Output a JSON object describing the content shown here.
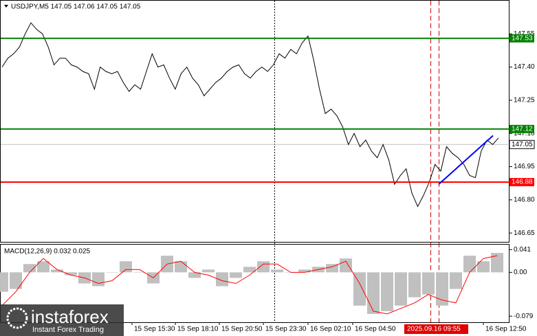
{
  "chart_data": [
    {
      "type": "line",
      "title": "USDJPY,M5  147.05 147.06 147.05 147.05",
      "color": "#000000",
      "values": [
        147.4,
        147.44,
        147.46,
        147.49,
        147.55,
        147.6,
        147.57,
        147.55,
        147.49,
        147.41,
        147.44,
        147.44,
        147.41,
        147.4,
        147.38,
        147.37,
        147.3,
        147.4,
        147.38,
        147.37,
        147.38,
        147.33,
        147.29,
        147.32,
        147.3,
        147.38,
        147.46,
        147.4,
        147.41,
        147.35,
        147.3,
        147.37,
        147.4,
        147.35,
        147.32,
        147.27,
        147.3,
        147.33,
        147.35,
        147.38,
        147.4,
        147.41,
        147.37,
        147.35,
        147.38,
        147.4,
        147.38,
        147.41,
        147.46,
        147.44,
        147.48,
        147.46,
        147.51,
        147.54,
        147.43,
        147.3,
        147.19,
        147.21,
        147.18,
        147.13,
        147.05,
        147.1,
        147.04,
        147.07,
        147.02,
        146.99,
        147.05,
        146.98,
        146.87,
        146.91,
        146.94,
        146.83,
        146.77,
        146.82,
        146.88,
        146.96,
        146.93,
        147.04,
        147.01,
        146.99,
        146.96,
        146.91,
        146.9,
        147.02,
        147.07,
        147.05,
        147.08
      ],
      "ylim": [
        146.61,
        147.7
      ],
      "yticks": [
        147.55,
        {
          "value": 147.4,
          "label": "147.40"
        },
        147.25,
        {
          "value": 147.1,
          "label": "147.10"
        },
        146.95,
        {
          "value": 146.8,
          "label": "146.80"
        },
        146.65
      ],
      "levels": [
        {
          "value": 147.53,
          "color": "#008000"
        },
        {
          "value": 147.12,
          "color": "#008000"
        },
        {
          "value": 146.88,
          "color": "#ff0000"
        }
      ],
      "current": {
        "value": 147.05,
        "color": "#c0c0c0"
      },
      "trendline": {
        "color": "#0000ff",
        "values": [
          146.87,
          147.09
        ]
      },
      "x_labels": [
        "15 Sep 15:30",
        "15 Sep 18:10",
        "15 Sep 20:50",
        "15 Sep 23:30",
        "16 Sep 02:10",
        "16 Sep 04:50",
        "16 Sep 12:50"
      ],
      "cursor_label": "2025.09.16 09:55"
    },
    {
      "type": "bar",
      "title": "MACD(12,26,9) 0.032 0.025",
      "color": "#c0c0c0",
      "values": [
        -0.035,
        -0.03,
        0.015,
        0.02,
        0.005,
        -0.005,
        -0.02,
        -0.025,
        0.0,
        0.02,
        0.0,
        -0.02,
        0.03,
        0.02,
        -0.01,
        0.005,
        -0.025,
        -0.01,
        0.01,
        0.02,
        0.005,
        0.0,
        0.005,
        0.01,
        0.015,
        0.025,
        -0.06,
        -0.075,
        -0.07,
        -0.06,
        -0.045,
        -0.04,
        -0.06,
        -0.03,
        0.03,
        0.02,
        0.035
      ],
      "signal": {
        "color": "#ff0000",
        "values": [
          -0.06,
          -0.035,
          0.0,
          0.025,
          0.005,
          -0.005,
          -0.01,
          -0.02,
          -0.015,
          0.005,
          0.005,
          -0.01,
          0.015,
          0.02,
          0.0,
          -0.005,
          -0.015,
          -0.02,
          -0.005,
          0.015,
          0.015,
          0.0,
          0.0,
          0.005,
          0.01,
          0.02,
          -0.02,
          -0.07,
          -0.075,
          -0.065,
          -0.055,
          -0.04,
          -0.05,
          -0.055,
          0.0,
          0.025,
          0.03
        ]
      },
      "ylim": [
        -0.09,
        0.05
      ],
      "yticks": [
        0.041,
        {
          "value": 0,
          "label": "0.00"
        },
        -0.079
      ]
    }
  ],
  "watermark": {
    "brand": "instaforex",
    "tagline": "Instant Forex Trading"
  }
}
